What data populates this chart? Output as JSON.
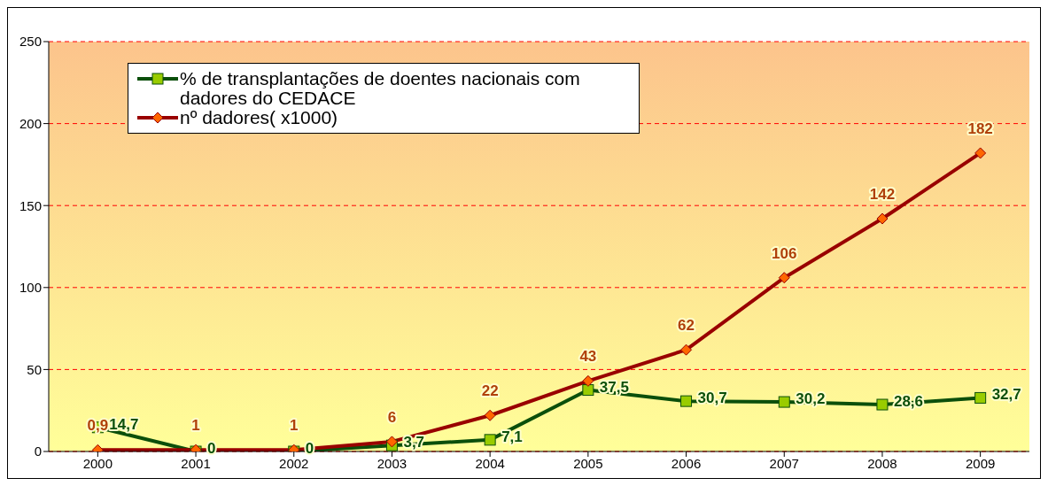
{
  "chart_data": {
    "type": "line",
    "categories": [
      "2000",
      "2001",
      "2002",
      "2003",
      "2004",
      "2005",
      "2006",
      "2007",
      "2008",
      "2009"
    ],
    "series": [
      {
        "name": "% de transplantações de doentes nacionais com dadores do CEDACE",
        "color": "#0b4f0b",
        "marker": "square",
        "values": [
          14.7,
          0,
          0,
          3.7,
          7.1,
          37.5,
          30.7,
          30.2,
          28.6,
          32.7
        ],
        "value_labels": [
          "14,7",
          "0",
          "0",
          "3,7",
          "7,1",
          "37,5",
          "30,7",
          "30,2",
          "28,6",
          "32,7"
        ]
      },
      {
        "name": "nº dadores( x1000)",
        "color": "#990000",
        "marker": "diamond",
        "values": [
          0.9,
          1,
          1,
          6,
          22,
          43,
          62,
          106,
          142,
          182
        ],
        "value_labels": [
          "0,9",
          "1",
          "1",
          "6",
          "22",
          "43",
          "62",
          "106",
          "142",
          "182"
        ]
      }
    ],
    "ylim": [
      0,
      250
    ],
    "yticks": [
      0,
      50,
      100,
      150,
      200,
      250
    ],
    "grid": "y",
    "legend": "top left",
    "line_style": "solid"
  }
}
